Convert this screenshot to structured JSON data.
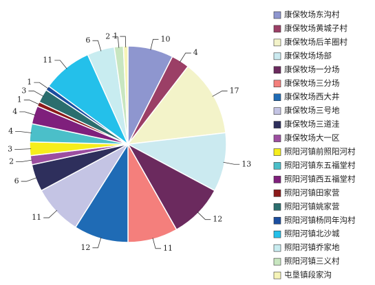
{
  "chart_data": {
    "type": "pie",
    "categories": [
      "康保牧场东沟村",
      "康保牧场黄城子村",
      "康保牧场后羊圈村",
      "康保牧场场部",
      "康保牧场一分场",
      "康保牧场三分场",
      "康保牧场西大井",
      "康保牧场三号地",
      "康保牧场三道洼",
      "康保牧场大一区",
      "照阳河镇前照阳河村",
      "照阳河镇东五福堂村",
      "照阳河镇西五福堂村",
      "照阳河镇田家营",
      "照阳河镇姚家营",
      "照阳河镇杨同年沟村",
      "照阳河镇北沙城",
      "照阳河镇乔家地",
      "照阳河镇三义村",
      "屯垦镇段家沟"
    ],
    "values": [
      10,
      4,
      17,
      13,
      12,
      11,
      12,
      11,
      6,
      2,
      3,
      4,
      4,
      1,
      3,
      1,
      11,
      6,
      2,
      1
    ],
    "colors": [
      "#8e96cf",
      "#9b3f66",
      "#f3f3c9",
      "#cbeaf0",
      "#6b2a5e",
      "#f47f7c",
      "#1f6bb5",
      "#c4c4e4",
      "#2e2f5c",
      "#9c4ea0",
      "#f6ee1c",
      "#4bbfc9",
      "#7f1f7c",
      "#8b1a1a",
      "#2b6e6e",
      "#1b4ea0",
      "#24c0ea",
      "#c8ecf0",
      "#c8e6c0",
      "#f6f4b8"
    ],
    "legend": "right"
  }
}
